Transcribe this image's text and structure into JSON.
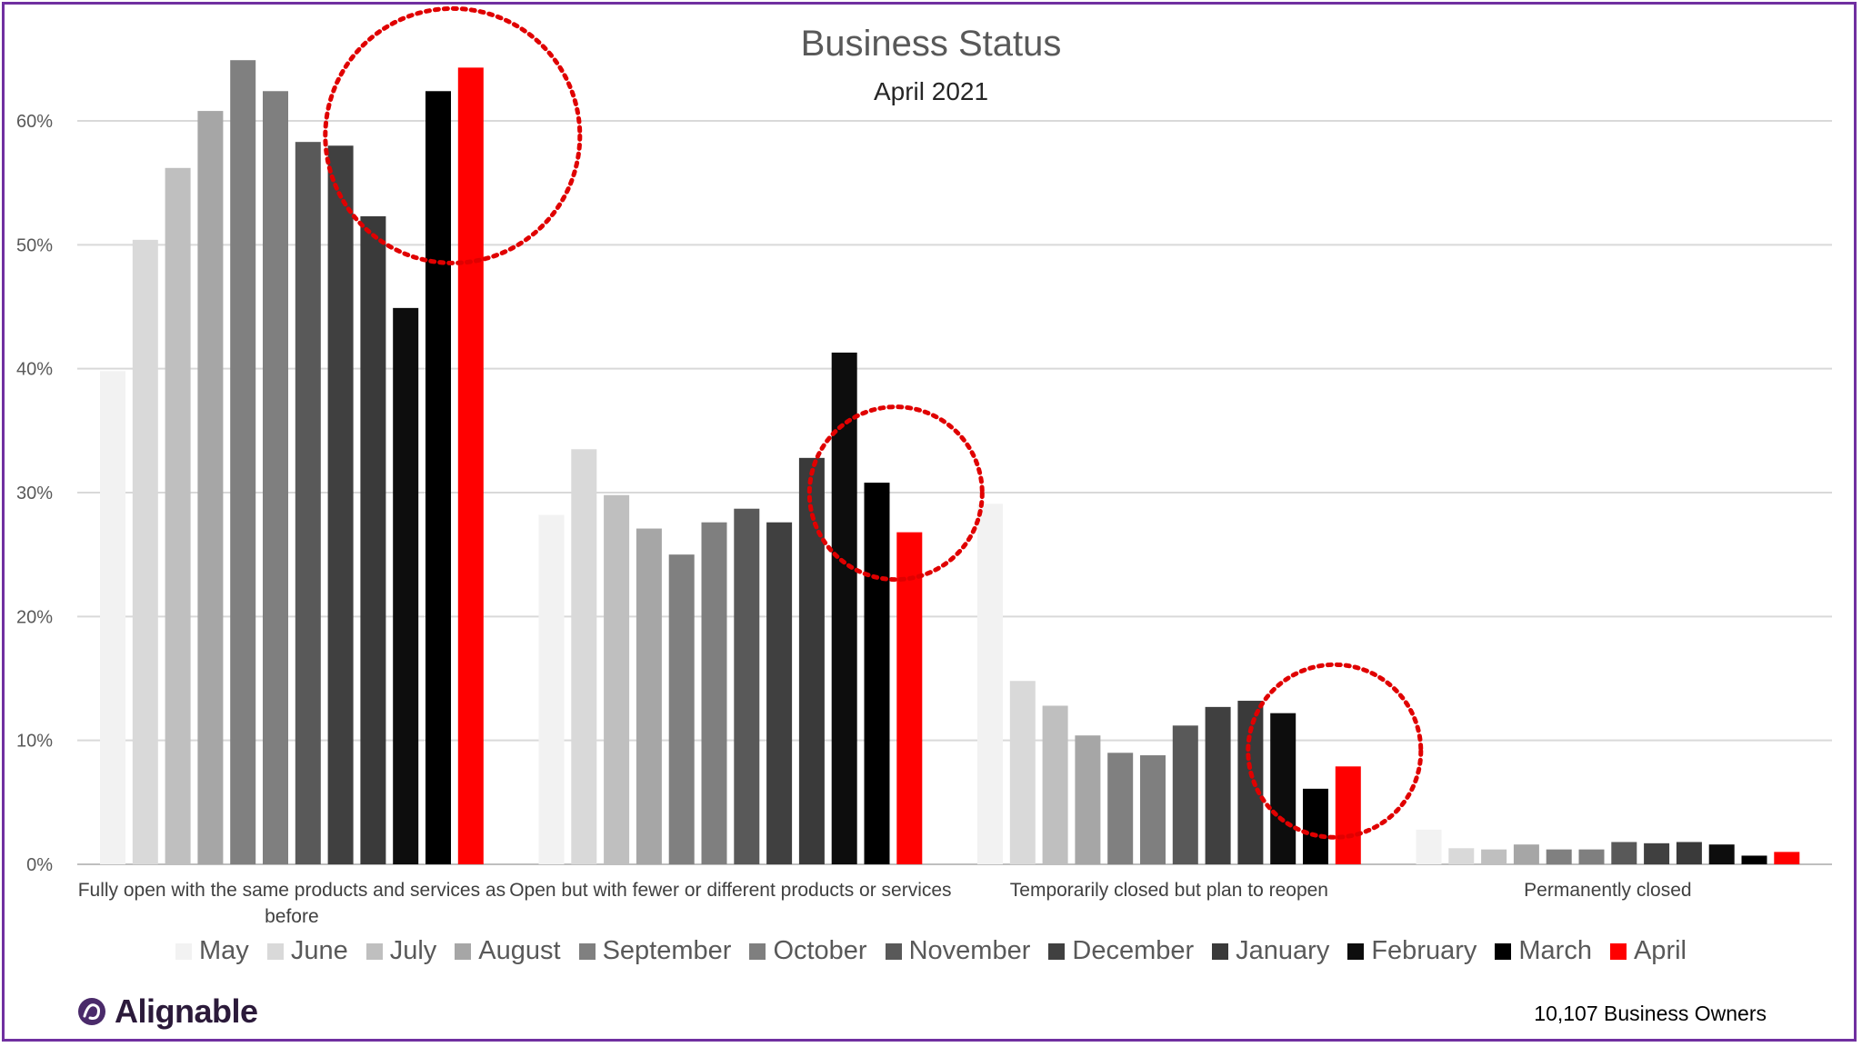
{
  "footer": {
    "logo_text": "Alignable",
    "footnote": "10,107 Business Owners"
  },
  "chart_data": {
    "type": "bar",
    "title": "Business Status",
    "subtitle": "April 2021",
    "categories": [
      "Fully open with the same products and services as before",
      "Open but with fewer or different products or services",
      "Temporarily closed but plan to reopen",
      "Permanently closed"
    ],
    "ylim": [
      0,
      0.65
    ],
    "yticks": [
      "0%",
      "10%",
      "20%",
      "30%",
      "40%",
      "50%",
      "60%"
    ],
    "grid": true,
    "legend_position": "bottom",
    "series": [
      {
        "name": "May",
        "color": "#f2f2f2",
        "values": [
          0.398,
          0.282,
          0.291,
          0.028
        ]
      },
      {
        "name": "June",
        "color": "#d9d9d9",
        "values": [
          0.504,
          0.335,
          0.148,
          0.013
        ]
      },
      {
        "name": "July",
        "color": "#bfbfbf",
        "values": [
          0.562,
          0.298,
          0.128,
          0.012
        ]
      },
      {
        "name": "August",
        "color": "#a6a6a6",
        "values": [
          0.608,
          0.271,
          0.104,
          0.016
        ]
      },
      {
        "name": "September",
        "color": "#808080",
        "values": [
          0.649,
          0.25,
          0.09,
          0.012
        ]
      },
      {
        "name": "October",
        "color": "#7f7f7f",
        "values": [
          0.624,
          0.276,
          0.088,
          0.012
        ]
      },
      {
        "name": "November",
        "color": "#595959",
        "values": [
          0.583,
          0.287,
          0.112,
          0.018
        ]
      },
      {
        "name": "December",
        "color": "#404040",
        "values": [
          0.58,
          0.276,
          0.127,
          0.017
        ]
      },
      {
        "name": "January",
        "color": "#3a3a3a",
        "values": [
          0.523,
          0.328,
          0.132,
          0.018
        ]
      },
      {
        "name": "February",
        "color": "#0d0d0d",
        "values": [
          0.449,
          0.413,
          0.122,
          0.016
        ]
      },
      {
        "name": "March",
        "color": "#000000",
        "values": [
          0.624,
          0.308,
          0.061,
          0.007
        ]
      },
      {
        "name": "April",
        "color": "#ff0000",
        "values": [
          0.643,
          0.268,
          0.079,
          0.01
        ]
      }
    ],
    "annotations": [
      {
        "type": "dotted-circle",
        "color": "#e00000",
        "category_index": 0,
        "about_series": "April"
      },
      {
        "type": "dotted-circle",
        "color": "#e00000",
        "category_index": 1,
        "about_series": "April"
      },
      {
        "type": "dotted-circle",
        "color": "#e00000",
        "category_index": 2,
        "about_series": "April"
      }
    ]
  }
}
